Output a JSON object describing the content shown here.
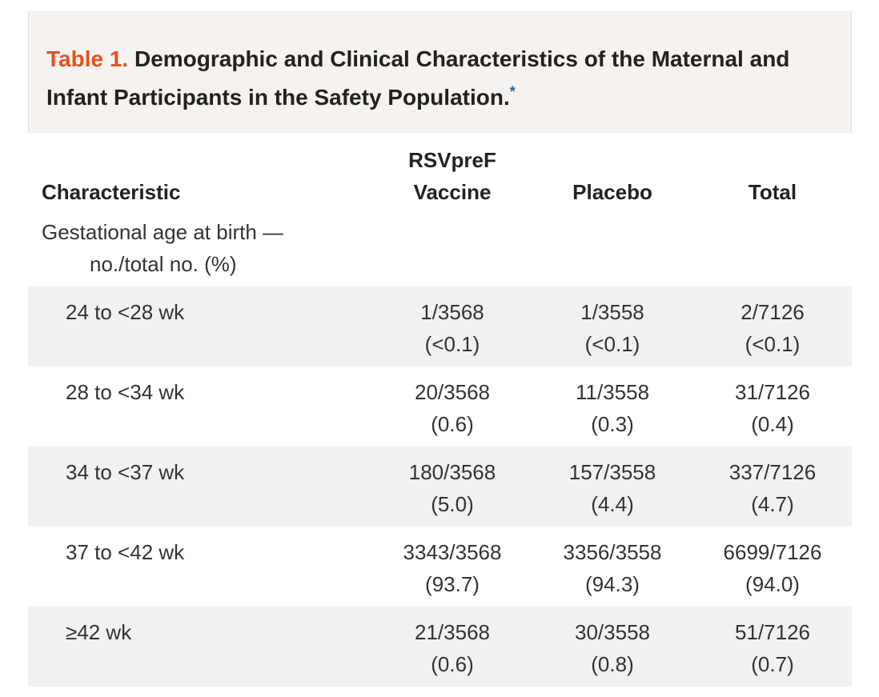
{
  "caption": {
    "label": "Table 1.",
    "title": "Demographic and Clinical Characteristics of the Maternal and Infant Participants in the Safety Population.",
    "footnote_mark": "*"
  },
  "table": {
    "headers": {
      "characteristic": "Characteristic",
      "vaccine_line1": "RSVpreF",
      "vaccine_line2": "Vaccine",
      "placebo": "Placebo",
      "total": "Total"
    },
    "section": {
      "line1": "Gestational age at birth —",
      "line2": "no./total no. (%)"
    },
    "rows": [
      {
        "label": "24 to <28 wk",
        "vaccine": [
          "1/3568",
          "(<0.1)"
        ],
        "placebo": [
          "1/3558",
          "(<0.1)"
        ],
        "total": [
          "2/7126",
          "(<0.1)"
        ]
      },
      {
        "label": "28 to <34 wk",
        "vaccine": [
          "20/3568",
          "(0.6)"
        ],
        "placebo": [
          "11/3558",
          "(0.3)"
        ],
        "total": [
          "31/7126",
          "(0.4)"
        ]
      },
      {
        "label": "34 to <37 wk",
        "vaccine": [
          "180/3568",
          "(5.0)"
        ],
        "placebo": [
          "157/3558",
          "(4.4)"
        ],
        "total": [
          "337/7126",
          "(4.7)"
        ]
      },
      {
        "label": "37 to <42 wk",
        "vaccine": [
          "3343/3568",
          "(93.7)"
        ],
        "placebo": [
          "3356/3558",
          "(94.3)"
        ],
        "total": [
          "6699/7126",
          "(94.0)"
        ]
      },
      {
        "label": "≥42 wk",
        "vaccine": [
          "21/3568",
          "(0.6)"
        ],
        "placebo": [
          "30/3558",
          "(0.8)"
        ],
        "total": [
          "51/7126",
          "(0.7)"
        ]
      }
    ]
  },
  "colors": {
    "caption_label": "#e4501e",
    "caption_bg": "#f5f2ef",
    "row_shade": "#f1f1f1",
    "footnote_mark": "#1f5fa8"
  }
}
